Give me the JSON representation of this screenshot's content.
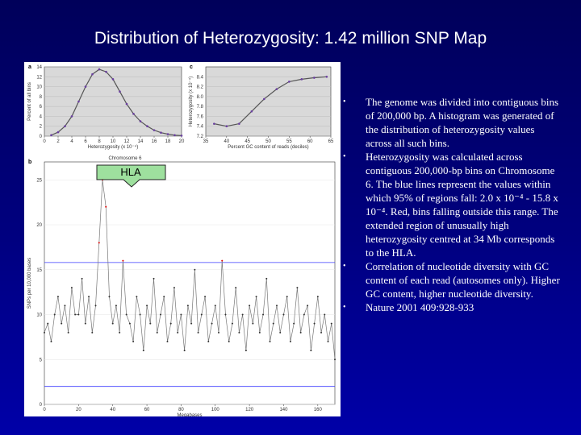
{
  "title": "Distribution of Heterozygosity: 1.42 million SNP Map",
  "callout": "HLA",
  "bullets": [
    "The genome was divided into contiguous bins of 200,000 bp. A histogram was generated of the distribution of heterozygosity values across all such bins.",
    "Heterozygosity was calculated across contiguous 200,000-bp bins on Chromosome 6. The blue lines represent the values within which 95% of regions fall: 2.0  x 10⁻⁴ - 15.8 x 10⁻⁴. Red, bins falling outside this range. The extended region of unusually high heterozygosity centred at 34 Mb corresponds to the HLA.",
    "Correlation of nucleotide diversity with GC content of each read (autosomes only). Higher GC content, higher nucleotide diversity.",
    "Nature 2001 409:928-933"
  ],
  "chart_data": [
    {
      "type": "line",
      "panel_label": "a",
      "x_label": "Heterozygosity (x 10⁻⁴)",
      "y_label": "Percent of all bins",
      "x": [
        1,
        2,
        3,
        4,
        5,
        6,
        7,
        8,
        9,
        10,
        11,
        12,
        13,
        14,
        15,
        16,
        17,
        18,
        19,
        20
      ],
      "values": [
        0.2,
        0.8,
        2,
        4,
        7,
        10,
        12.5,
        13.5,
        13,
        11.5,
        9,
        6.5,
        4.5,
        3,
        2,
        1.2,
        0.7,
        0.4,
        0.2,
        0.1
      ],
      "color": "#555555",
      "xlim": [
        0,
        20
      ],
      "xticks": [
        0,
        2,
        4,
        6,
        8,
        10,
        12,
        14,
        16,
        18,
        20
      ],
      "ylim": [
        0,
        14
      ],
      "yticks": [
        0,
        2,
        4,
        6,
        8,
        10,
        12,
        14
      ]
    },
    {
      "type": "line",
      "panel_label": "c",
      "x_label": "Percent GC content of reads (deciles)",
      "y_label": "Heterozygosity (x 10⁻⁴)",
      "x": [
        37,
        40,
        43,
        46,
        49,
        52,
        55,
        58,
        61,
        64
      ],
      "values": [
        7.45,
        7.4,
        7.45,
        7.7,
        7.95,
        8.15,
        8.3,
        8.35,
        8.38,
        8.4
      ],
      "color": "#555555",
      "xlim": [
        35,
        65
      ],
      "xticks": [
        35,
        40,
        45,
        50,
        55,
        60,
        65
      ],
      "ylim": [
        7.2,
        8.6
      ],
      "yticks": [
        7.2,
        7.4,
        7.6,
        7.8,
        {
          "value": 8,
          "label": "8.0"
        },
        8.2,
        8.4
      ]
    },
    {
      "type": "line",
      "panel_label": "b",
      "title": "Chromosome 6",
      "x_label": "Megabases",
      "y_label": "SNPs per 10,000 bases",
      "x": [
        0,
        2,
        4,
        6,
        8,
        10,
        12,
        14,
        16,
        18,
        20,
        22,
        24,
        26,
        28,
        30,
        32,
        34,
        36,
        38,
        40,
        42,
        44,
        46,
        48,
        50,
        52,
        54,
        56,
        58,
        60,
        62,
        64,
        66,
        68,
        70,
        72,
        74,
        76,
        78,
        80,
        82,
        84,
        86,
        88,
        90,
        92,
        94,
        96,
        98,
        100,
        102,
        104,
        106,
        108,
        110,
        112,
        114,
        116,
        118,
        120,
        122,
        124,
        126,
        128,
        130,
        132,
        134,
        136,
        138,
        140,
        142,
        144,
        146,
        148,
        150,
        152,
        154,
        156,
        158,
        160,
        162,
        164,
        166,
        168,
        170
      ],
      "values": [
        8,
        9,
        7,
        10,
        12,
        9,
        11,
        8,
        13,
        10,
        10,
        14,
        9,
        12,
        8,
        11,
        18,
        25,
        22,
        12,
        9,
        11,
        8,
        16,
        10,
        9,
        7,
        12,
        10,
        6,
        11,
        9,
        14,
        8,
        10,
        12,
        7,
        9,
        13,
        8,
        10,
        6,
        11,
        9,
        15,
        8,
        10,
        12,
        7,
        9,
        11,
        8,
        16,
        10,
        7,
        9,
        13,
        8,
        10,
        6,
        11,
        9,
        12,
        8,
        10,
        14,
        7,
        9,
        11,
        8,
        10,
        12,
        7,
        9,
        13,
        8,
        10,
        11,
        6,
        9,
        12,
        8,
        10,
        7,
        9,
        5
      ],
      "color": "#777777",
      "reference_lines": [
        2.0,
        15.8
      ],
      "reference_color": "#3a3aff",
      "xlim": [
        0,
        170
      ],
      "xticks": [
        0,
        20,
        40,
        60,
        80,
        100,
        120,
        140,
        160
      ],
      "ylim": [
        0,
        27
      ],
      "yticks": [
        0,
        5,
        10,
        15,
        20,
        25
      ]
    }
  ]
}
